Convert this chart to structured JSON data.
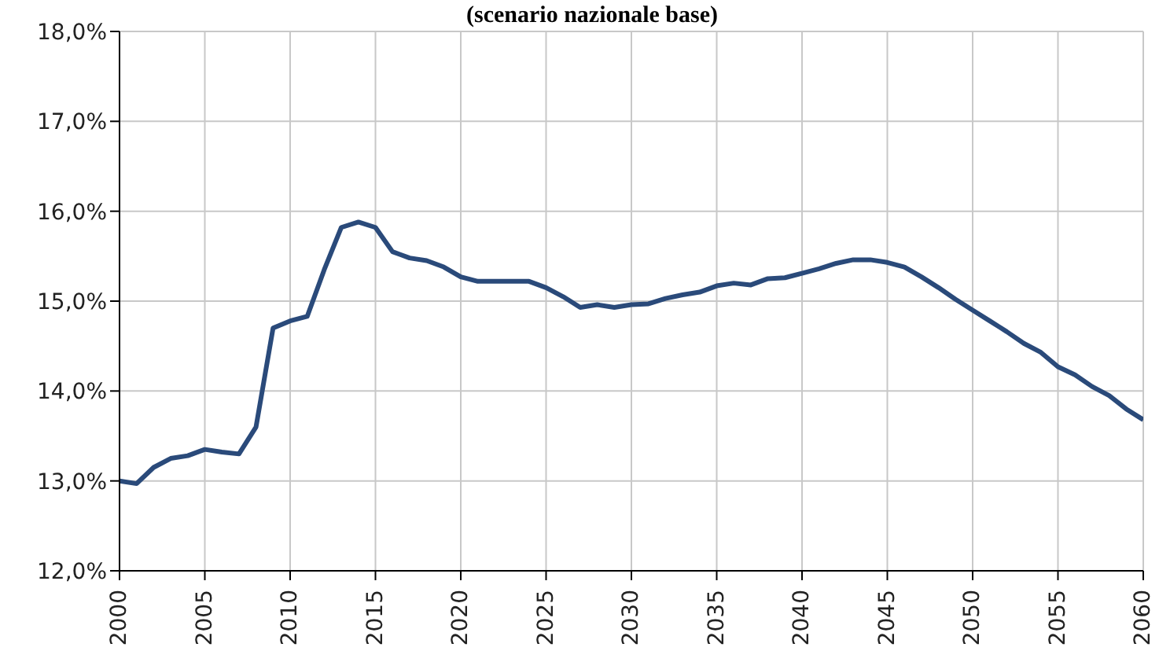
{
  "chart_data": {
    "type": "line",
    "subtitle": "(scenario nazionale base)",
    "x": [
      2000,
      2001,
      2002,
      2003,
      2004,
      2005,
      2006,
      2007,
      2008,
      2009,
      2010,
      2011,
      2012,
      2013,
      2014,
      2015,
      2016,
      2017,
      2018,
      2019,
      2020,
      2021,
      2022,
      2023,
      2024,
      2025,
      2026,
      2027,
      2028,
      2029,
      2030,
      2031,
      2032,
      2033,
      2034,
      2035,
      2036,
      2037,
      2038,
      2039,
      2040,
      2041,
      2042,
      2043,
      2044,
      2045,
      2046,
      2047,
      2048,
      2049,
      2050,
      2051,
      2052,
      2053,
      2054,
      2055,
      2056,
      2057,
      2058,
      2059,
      2060
    ],
    "series": [
      {
        "color": "#2a4a7a",
        "values": [
          13.0,
          12.97,
          13.15,
          13.25,
          13.28,
          13.35,
          13.32,
          13.3,
          13.6,
          14.7,
          14.78,
          14.83,
          15.35,
          15.82,
          15.88,
          15.82,
          15.55,
          15.48,
          15.45,
          15.38,
          15.27,
          15.22,
          15.22,
          15.22,
          15.22,
          15.15,
          15.05,
          14.93,
          14.96,
          14.93,
          14.96,
          14.97,
          15.03,
          15.07,
          15.1,
          15.17,
          15.2,
          15.18,
          15.25,
          15.26,
          15.31,
          15.36,
          15.42,
          15.46,
          15.46,
          15.43,
          15.38,
          15.27,
          15.15,
          15.02,
          14.9,
          14.78,
          14.66,
          14.53,
          14.43,
          14.27,
          14.18,
          14.05,
          13.95,
          13.8,
          13.68
        ]
      }
    ],
    "xlim": [
      2000,
      2060
    ],
    "xticks": [
      2000,
      2005,
      2010,
      2015,
      2020,
      2025,
      2030,
      2035,
      2040,
      2045,
      2050,
      2055,
      2060
    ],
    "ylim": [
      12,
      18
    ],
    "yticks": [
      {
        "value": 12,
        "label": "12,0%"
      },
      {
        "value": 13,
        "label": "13,0%"
      },
      {
        "value": 14,
        "label": "14,0%"
      },
      {
        "value": 15,
        "label": "15,0%"
      },
      {
        "value": 16,
        "label": "16,0%"
      },
      {
        "value": 17,
        "label": "17,0%"
      },
      {
        "value": 18,
        "label": "18,0%"
      }
    ],
    "grid": true,
    "marker": "none",
    "line_style": "solid",
    "legend": false
  }
}
